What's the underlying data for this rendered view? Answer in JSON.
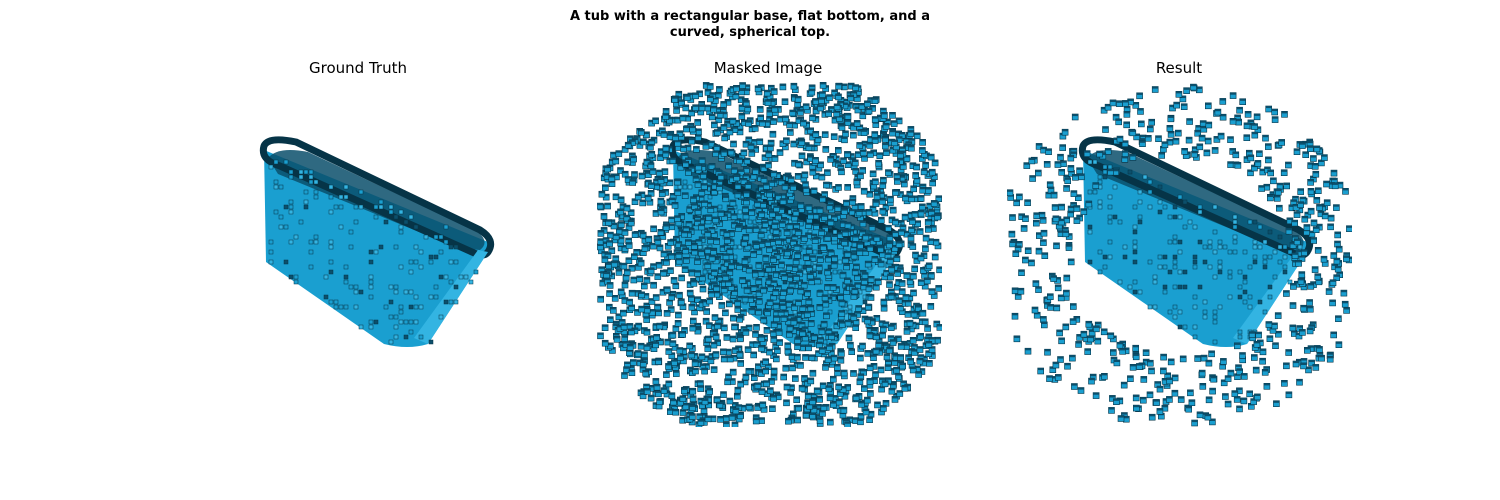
{
  "figure": {
    "title_lines": [
      "A tub with a rectangular base, flat bottom, and a",
      "curved, spherical top."
    ]
  },
  "panels": [
    {
      "title": "Ground Truth",
      "content": "voxel-tub",
      "noise_level": 0.0
    },
    {
      "title": "Masked Image",
      "content": "voxel-tub-with-heavy-noise",
      "noise_level": 1.0
    },
    {
      "title": "Result",
      "content": "voxel-tub-with-sparse-noise",
      "noise_level": 0.25
    }
  ],
  "colors": {
    "voxel_face": "#1a9fd0",
    "voxel_light": "#33b4e2",
    "voxel_dark": "#0b4f6b",
    "voxel_edge": "#063447",
    "background": "#ffffff"
  }
}
